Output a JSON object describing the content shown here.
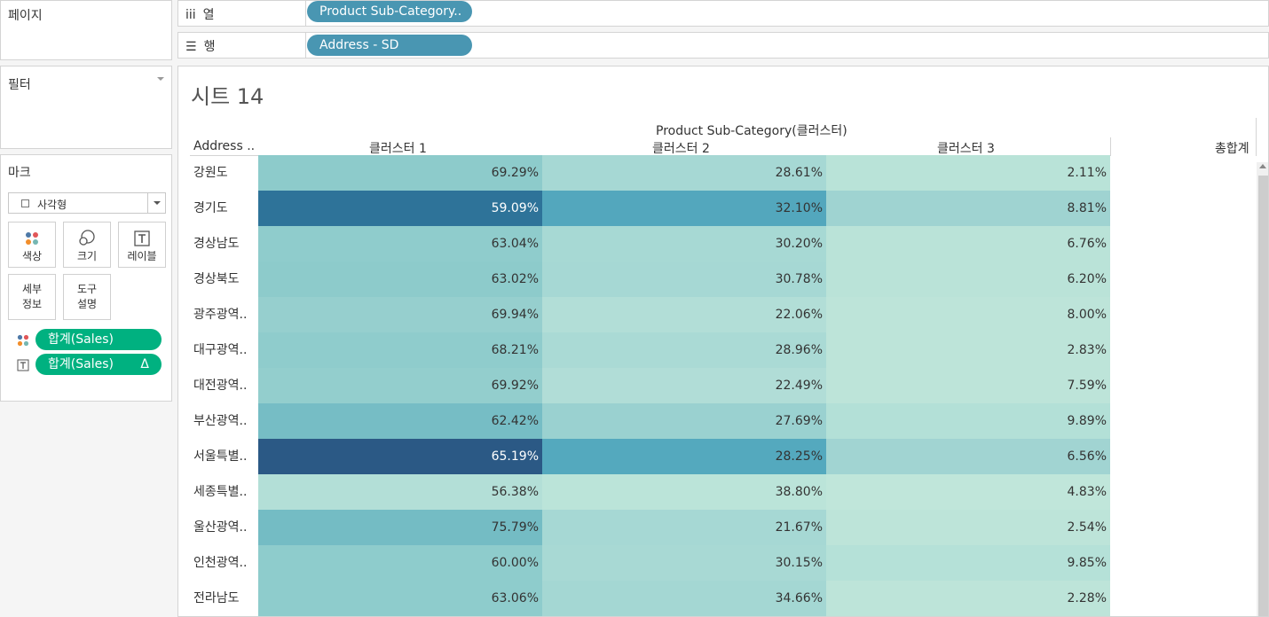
{
  "sidebar": {
    "pages_label": "페이지",
    "filters_label": "필터",
    "marks_label": "마크",
    "mark_type": "사각형",
    "buttons": {
      "color": "색상",
      "size": "크기",
      "label": "레이블",
      "detail": "세부\n정보",
      "tooltip": "도구\n설명"
    },
    "mark_pills": [
      {
        "label": "합계(Sales)"
      },
      {
        "label": "합계(Sales)",
        "badge": "Δ"
      }
    ]
  },
  "shelves": {
    "columns_label": "열",
    "columns_icon": "iii",
    "columns_pill": "Product Sub-Category..",
    "rows_label": "행",
    "rows_icon": "☰",
    "rows_pill": "Address - SD"
  },
  "sheet": {
    "title": "시트 14",
    "group_header": "Product Sub-Category(클러스터)",
    "row_header": "Address ..",
    "column_headers": [
      "클러스터 1",
      "클러스터 2",
      "클러스터 3",
      "총합계"
    ],
    "rows": [
      {
        "label": "강원도",
        "values": [
          "69.29%",
          "28.61%",
          "2.11%"
        ],
        "colors": [
          "#8dcbcb",
          "#a6d8d4",
          "#b9e3d8"
        ]
      },
      {
        "label": "경기도",
        "values": [
          "59.09%",
          "32.10%",
          "8.81%"
        ],
        "colors": [
          "#2e7399",
          "#53a7bd",
          "#9fd3d1"
        ]
      },
      {
        "label": "경상남도",
        "values": [
          "63.04%",
          "30.20%",
          "6.76%"
        ],
        "colors": [
          "#8fcccc",
          "#a7d9d4",
          "#bae3d8"
        ]
      },
      {
        "label": "경상북도",
        "values": [
          "63.02%",
          "30.78%",
          "6.20%"
        ],
        "colors": [
          "#8dcbcb",
          "#a6d8d4",
          "#bae3d8"
        ]
      },
      {
        "label": "광주광역..",
        "values": [
          "69.94%",
          "22.06%",
          "8.00%"
        ],
        "colors": [
          "#96cfce",
          "#b2ded7",
          "#bde4d9"
        ]
      },
      {
        "label": "대구광역..",
        "values": [
          "68.21%",
          "28.96%",
          "2.83%"
        ],
        "colors": [
          "#8fcccc",
          "#aadad5",
          "#bde4d9"
        ]
      },
      {
        "label": "대전광역..",
        "values": [
          "69.92%",
          "22.49%",
          "7.59%"
        ],
        "colors": [
          "#93cecd",
          "#b1ddd7",
          "#bde4d9"
        ]
      },
      {
        "label": "부산광역..",
        "values": [
          "62.42%",
          "27.69%",
          "9.89%"
        ],
        "colors": [
          "#76bdc5",
          "#9ad1d0",
          "#b3e0d7"
        ]
      },
      {
        "label": "서울특별..",
        "values": [
          "65.19%",
          "28.25%",
          "6.56%"
        ],
        "colors": [
          "#2b5985",
          "#54a9be",
          "#a1d4d2"
        ]
      },
      {
        "label": "세종특별..",
        "values": [
          "56.38%",
          "38.80%",
          "4.83%"
        ],
        "colors": [
          "#b3dfd7",
          "#bbe4d9",
          "#c0e6da"
        ]
      },
      {
        "label": "울산광역..",
        "values": [
          "75.79%",
          "21.67%",
          "2.54%"
        ],
        "colors": [
          "#74bcc4",
          "#a6d8d4",
          "#bde4d9"
        ]
      },
      {
        "label": "인천광역..",
        "values": [
          "60.00%",
          "30.15%",
          "9.85%"
        ],
        "colors": [
          "#8ecccc",
          "#a8d9d4",
          "#b5e1d8"
        ]
      },
      {
        "label": "전라남도",
        "values": [
          "63.06%",
          "34.66%",
          "2.28%"
        ],
        "colors": [
          "#8ecccc",
          "#a4d7d3",
          "#bde4d9"
        ]
      }
    ]
  },
  "colors": {
    "pill_teal": "#4996b2",
    "pill_green": "#00b180"
  }
}
